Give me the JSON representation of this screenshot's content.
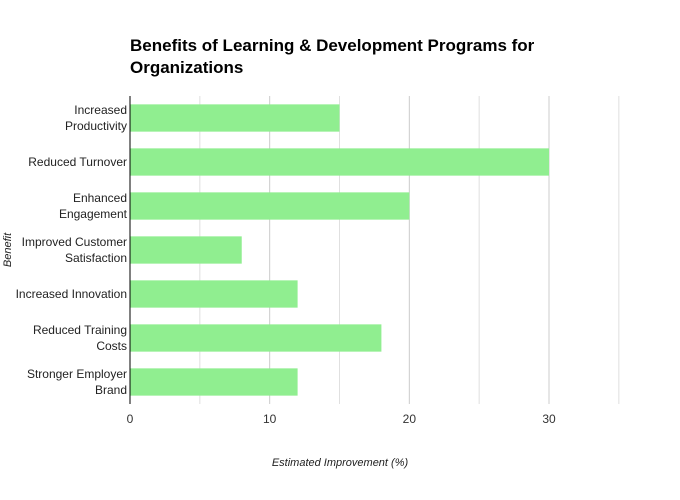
{
  "chart_data": {
    "type": "bar",
    "orientation": "horizontal",
    "title": [
      "Benefits of Learning & Development Programs for",
      "Organizations"
    ],
    "xlabel": "Estimated Improvement (%)",
    "ylabel": "Benefit",
    "categories": [
      [
        "Increased",
        "Productivity"
      ],
      [
        "Reduced Turnover"
      ],
      [
        "Enhanced",
        "Engagement"
      ],
      [
        "Improved Customer",
        "Satisfaction"
      ],
      [
        "Increased Innovation"
      ],
      [
        "Reduced Training",
        "Costs"
      ],
      [
        "Stronger Employer",
        "Brand"
      ]
    ],
    "values": [
      15,
      30,
      20,
      8,
      12,
      18,
      12
    ],
    "xlim": [
      0,
      30
    ],
    "xticks": [
      0,
      10,
      20,
      30
    ],
    "grid": true,
    "bar_color": "#90ee90",
    "grid_color": "#e0e0e0"
  }
}
